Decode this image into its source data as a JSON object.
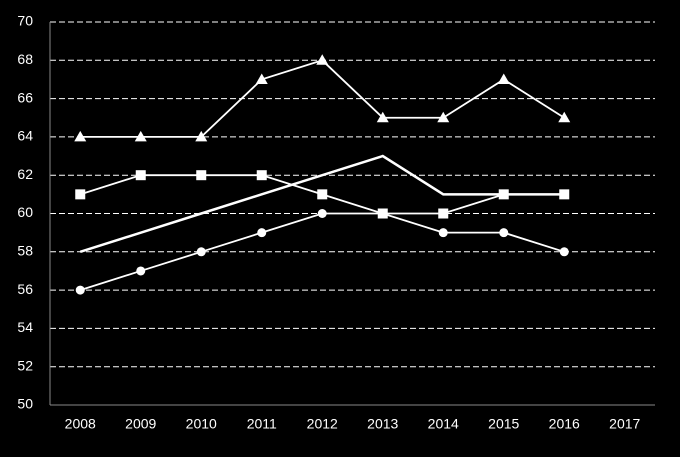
{
  "chart_data": {
    "type": "line",
    "categories": [
      "2008",
      "2009",
      "2010",
      "2011",
      "2012",
      "2013",
      "2014",
      "2015",
      "2016",
      "2017"
    ],
    "series": [
      {
        "color": "#ffffff",
        "marker": "triangle",
        "values": [
          64,
          64,
          64,
          67,
          68,
          65,
          65,
          67,
          65,
          null
        ]
      },
      {
        "color": "#ffffff",
        "marker": "square",
        "values": [
          61,
          62,
          62,
          62,
          61,
          60,
          60,
          61,
          61,
          null
        ]
      },
      {
        "color": "#ffffff",
        "marker": "circle",
        "values": [
          56,
          57,
          58,
          59,
          60,
          60,
          59,
          59,
          58,
          null
        ]
      },
      {
        "color": "#ffffff",
        "marker": "none",
        "values": [
          58,
          59,
          60,
          61,
          62,
          63,
          61,
          61,
          61,
          null
        ]
      }
    ],
    "ylim": [
      50,
      70
    ],
    "yticks": [
      50,
      52,
      54,
      56,
      58,
      60,
      62,
      64,
      66,
      68,
      70
    ],
    "grid": true
  }
}
